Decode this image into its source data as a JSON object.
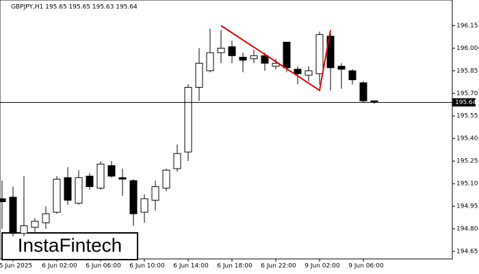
{
  "chart_data": {
    "type": "candlestick",
    "title": "GBPJPY,H1  195.65 195.65 195.63 195.64",
    "categories": [
      null,
      "5 Jun 2025",
      null,
      null,
      null,
      "6 Jun 02:00",
      null,
      null,
      null,
      "6 Jun 06:00",
      null,
      null,
      null,
      "6 Jun 10:00",
      null,
      null,
      null,
      "6 Jun 14:00",
      null,
      null,
      null,
      "6 Jun 18:00",
      null,
      null,
      null,
      "6 Jun 22:00",
      null,
      null,
      null,
      "9 Jun 02:00",
      null,
      null,
      null,
      "9 Jun 06:00",
      null
    ],
    "open": [
      195.0,
      195.01,
      194.77,
      194.81,
      194.84,
      194.91,
      195.14,
      194.97,
      195.15,
      195.07,
      195.22,
      195.14,
      195.12,
      194.91,
      194.99,
      195.07,
      195.2,
      195.31,
      195.74,
      195.85,
      195.97,
      196.01,
      195.94,
      195.93,
      195.95,
      195.88,
      196.04,
      195.86,
      195.82,
      195.83,
      196.08,
      195.88,
      195.85,
      195.77,
      195.65
    ],
    "high": [
      195.12,
      195.08,
      195.15,
      194.87,
      194.95,
      195.15,
      195.21,
      195.19,
      195.17,
      195.25,
      195.25,
      195.2,
      195.13,
      195.03,
      195.12,
      195.2,
      195.36,
      195.76,
      196.0,
      196.13,
      196.12,
      196.05,
      195.97,
      195.99,
      195.97,
      195.93,
      196.04,
      195.88,
      195.88,
      196.11,
      196.1,
      195.9,
      195.86,
      195.78,
      195.65
    ],
    "low": [
      194.8,
      194.75,
      194.75,
      194.78,
      194.8,
      194.9,
      194.96,
      194.96,
      195.06,
      195.06,
      195.14,
      195.02,
      194.82,
      194.84,
      194.92,
      195.05,
      195.18,
      195.25,
      195.65,
      195.84,
      195.9,
      195.9,
      195.84,
      195.9,
      195.85,
      195.86,
      195.84,
      195.76,
      195.78,
      195.76,
      195.72,
      195.73,
      195.76,
      195.64,
      195.63
    ],
    "close": [
      194.98,
      194.77,
      194.82,
      194.85,
      194.9,
      195.13,
      194.99,
      195.14,
      195.08,
      195.23,
      195.15,
      195.13,
      194.9,
      195.0,
      195.08,
      195.19,
      195.3,
      195.74,
      195.9,
      195.97,
      196.0,
      195.95,
      195.92,
      195.95,
      195.9,
      195.9,
      195.87,
      195.83,
      195.85,
      196.09,
      195.87,
      195.86,
      195.79,
      195.65,
      195.64
    ],
    "ylim": [
      194.6,
      196.32
    ],
    "yticks": [
      196.15,
      {
        "value": 196,
        "label": "196.00"
      },
      195.85,
      {
        "value": 195.7,
        "label": "195.70"
      },
      195.55,
      {
        "value": 195.4,
        "label": "195.40"
      },
      195.25,
      {
        "value": 195.1,
        "label": "195.10"
      },
      194.95,
      {
        "value": 194.8,
        "label": "194.80"
      },
      194.65
    ],
    "last_price": 195.64,
    "pattern": {
      "color": "#e00000",
      "points": [
        {
          "x_index": 20,
          "y": 196.15
        },
        {
          "x_index": 29,
          "y": 195.72
        },
        {
          "x_index": 30,
          "y": 196.12
        }
      ]
    },
    "watermark": "InstaFintech"
  }
}
